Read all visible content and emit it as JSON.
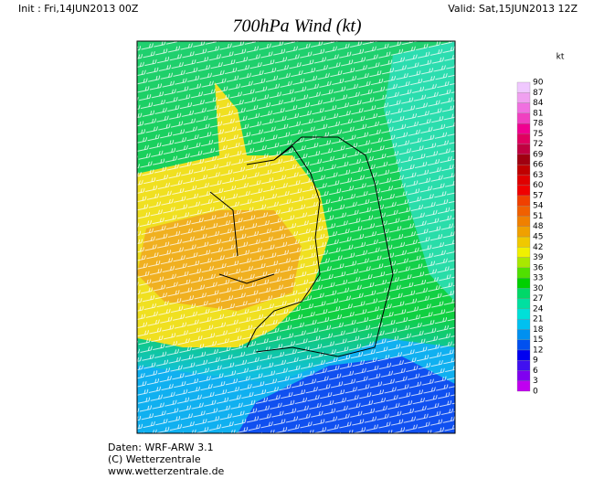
{
  "header": {
    "init": "Init : Fri,14JUN2013 00Z",
    "valid": "Valid: Sat,15JUN2013 12Z",
    "title": "700hPa Wind (kt)"
  },
  "colorbar": {
    "unit": "kt",
    "levels": [
      0,
      3,
      6,
      9,
      12,
      15,
      18,
      21,
      24,
      27,
      30,
      33,
      36,
      39,
      42,
      45,
      48,
      51,
      54,
      57,
      60,
      63,
      66,
      69,
      72,
      75,
      78,
      81,
      84,
      87,
      90
    ],
    "colors": [
      "#c000f0",
      "#8000f0",
      "#4010f0",
      "#0000f0",
      "#0050f0",
      "#0090f0",
      "#00c0f0",
      "#00e0d8",
      "#00e0a0",
      "#00d868",
      "#00d000",
      "#50e000",
      "#a8e800",
      "#f0f000",
      "#f0c800",
      "#f0a000",
      "#f08000",
      "#f06000",
      "#f04000",
      "#f00000",
      "#e00000",
      "#c00000",
      "#a00010",
      "#c00040",
      "#e00060",
      "#f00090",
      "#f040c0",
      "#f070e0",
      "#f0a0f0",
      "#f0c8ff"
    ]
  },
  "footer": {
    "lines": [
      "Daten: WRF-ARW 3.1",
      "(C) Wetterzentrale",
      "www.wetterzentrale.de"
    ]
  }
}
